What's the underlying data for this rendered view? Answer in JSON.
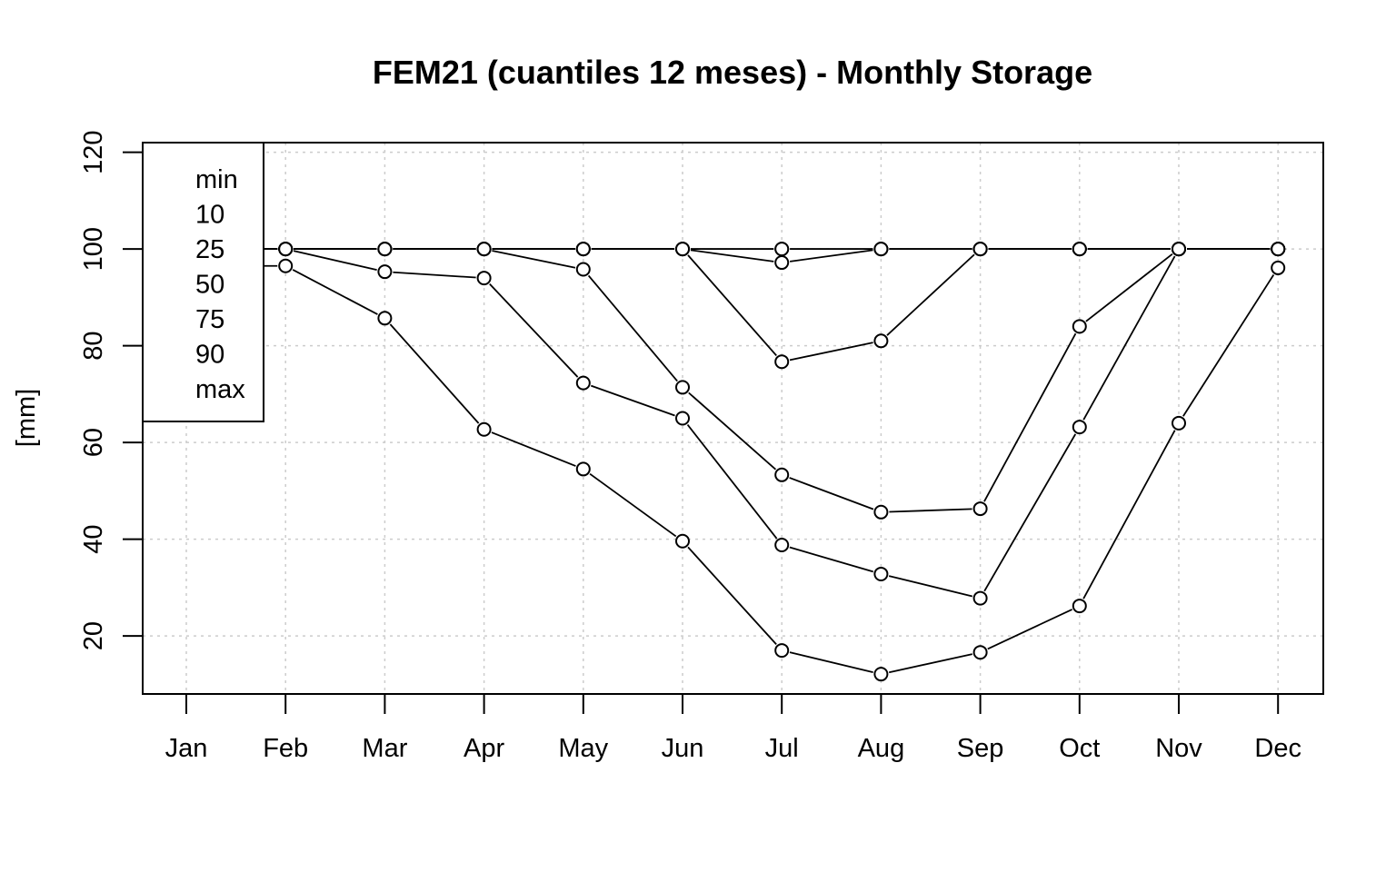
{
  "chart_data": {
    "type": "line",
    "title": "FEM21 (cuantiles 12 meses) - Monthly Storage",
    "xlabel": "",
    "ylabel": "[mm]",
    "ylim": [
      8,
      122
    ],
    "yticks": [
      20,
      40,
      60,
      80,
      100,
      120
    ],
    "grid": true,
    "legend_position": "top-left",
    "legend": [
      "min",
      "10",
      "25",
      "50",
      "75",
      "90",
      "max"
    ],
    "categories": [
      "Jan",
      "Feb",
      "Mar",
      "Apr",
      "May",
      "Jun",
      "Jul",
      "Aug",
      "Sep",
      "Oct",
      "Nov",
      "Dec"
    ],
    "series": [
      {
        "name": "min",
        "values": [
          96.5,
          96.5,
          85.7,
          62.7,
          54.5,
          39.6,
          17.0,
          12.1,
          16.6,
          26.2,
          64.0,
          96.1
        ]
      },
      {
        "name": "10",
        "values": [
          100,
          100,
          95.3,
          94.0,
          72.3,
          65.0,
          38.8,
          32.8,
          27.8,
          63.2,
          100,
          100
        ]
      },
      {
        "name": "25",
        "values": [
          100,
          100,
          100,
          100,
          95.8,
          71.4,
          53.3,
          45.6,
          46.3,
          84.0,
          100,
          100
        ]
      },
      {
        "name": "50",
        "values": [
          100,
          100,
          100,
          100,
          100,
          100,
          76.7,
          81.0,
          100,
          100,
          100,
          100
        ]
      },
      {
        "name": "75",
        "values": [
          100,
          100,
          100,
          100,
          100,
          100,
          97.2,
          100,
          100,
          100,
          100,
          100
        ]
      },
      {
        "name": "90",
        "values": [
          100,
          100,
          100,
          100,
          100,
          100,
          100,
          100,
          100,
          100,
          100,
          100
        ]
      },
      {
        "name": "max",
        "values": [
          100,
          100,
          100,
          100,
          100,
          100,
          100,
          100,
          100,
          100,
          100,
          100
        ]
      }
    ]
  }
}
